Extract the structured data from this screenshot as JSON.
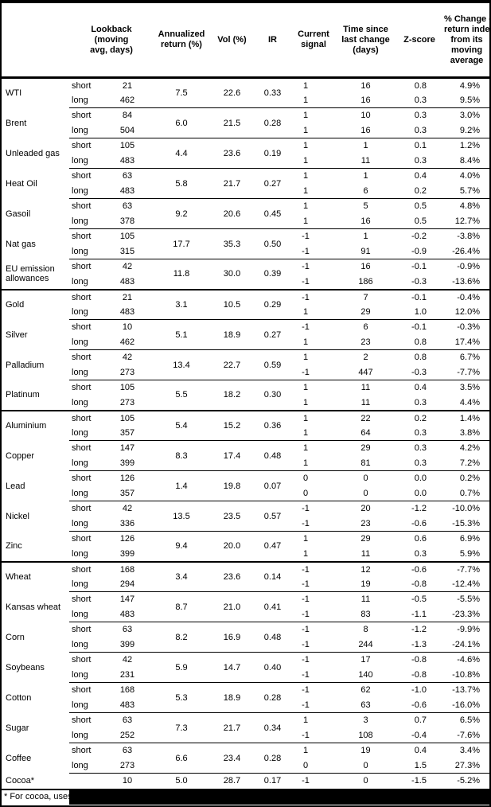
{
  "header": {
    "lookback": "Lookback\n(moving\navg, days)",
    "annualized": "Annualized\nreturn (%)",
    "vol": "Vol (%)",
    "ir": "IR",
    "signal": "Current\nsignal",
    "time_since": "Time since\nlast change\n(days)",
    "zscore": "Z-score",
    "pct_change": "% Change of\nreturn index\nfrom its\nmoving\naverage"
  },
  "leg_labels": {
    "short": "short",
    "long": "long"
  },
  "rows": [
    {
      "name": "WTI",
      "ann": "7.5",
      "vol": "22.6",
      "ir": "0.33",
      "short": {
        "look": "21",
        "sig": "1",
        "time": "16",
        "z": "0.8",
        "pct": "4.9%"
      },
      "long": {
        "look": "462",
        "sig": "1",
        "time": "16",
        "z": "0.3",
        "pct": "9.5%"
      }
    },
    {
      "name": "Brent",
      "ann": "6.0",
      "vol": "21.5",
      "ir": "0.28",
      "short": {
        "look": "84",
        "sig": "1",
        "time": "10",
        "z": "0.3",
        "pct": "3.0%"
      },
      "long": {
        "look": "504",
        "sig": "1",
        "time": "16",
        "z": "0.3",
        "pct": "9.2%"
      }
    },
    {
      "name": "Unleaded gas",
      "ann": "4.4",
      "vol": "23.6",
      "ir": "0.19",
      "short": {
        "look": "105",
        "sig": "1",
        "time": "1",
        "z": "0.1",
        "pct": "1.2%"
      },
      "long": {
        "look": "483",
        "sig": "1",
        "time": "11",
        "z": "0.3",
        "pct": "8.4%"
      }
    },
    {
      "name": "Heat Oil",
      "ann": "5.8",
      "vol": "21.7",
      "ir": "0.27",
      "short": {
        "look": "63",
        "sig": "1",
        "time": "1",
        "z": "0.4",
        "pct": "4.0%"
      },
      "long": {
        "look": "483",
        "sig": "1",
        "time": "6",
        "z": "0.2",
        "pct": "5.7%"
      }
    },
    {
      "name": "Gasoil",
      "ann": "9.2",
      "vol": "20.6",
      "ir": "0.45",
      "short": {
        "look": "63",
        "sig": "1",
        "time": "5",
        "z": "0.5",
        "pct": "4.8%"
      },
      "long": {
        "look": "378",
        "sig": "1",
        "time": "16",
        "z": "0.5",
        "pct": "12.7%"
      }
    },
    {
      "name": "Nat gas",
      "ann": "17.7",
      "vol": "35.3",
      "ir": "0.50",
      "short": {
        "look": "105",
        "sig": "-1",
        "time": "1",
        "z": "-0.2",
        "pct": "-3.8%"
      },
      "long": {
        "look": "315",
        "sig": "-1",
        "time": "91",
        "z": "-0.9",
        "pct": "-26.4%"
      }
    },
    {
      "name": "EU emission allowances",
      "ann": "11.8",
      "vol": "30.0",
      "ir": "0.39",
      "short": {
        "look": "42",
        "sig": "-1",
        "time": "16",
        "z": "-0.1",
        "pct": "-0.9%"
      },
      "long": {
        "look": "483",
        "sig": "-1",
        "time": "186",
        "z": "-0.3",
        "pct": "-13.6%"
      }
    },
    {
      "name": "Gold",
      "section": true,
      "ann": "3.1",
      "vol": "10.5",
      "ir": "0.29",
      "short": {
        "look": "21",
        "sig": "-1",
        "time": "7",
        "z": "-0.1",
        "pct": "-0.4%"
      },
      "long": {
        "look": "483",
        "sig": "1",
        "time": "29",
        "z": "1.0",
        "pct": "12.0%"
      }
    },
    {
      "name": "Silver",
      "ann": "5.1",
      "vol": "18.9",
      "ir": "0.27",
      "short": {
        "look": "10",
        "sig": "-1",
        "time": "6",
        "z": "-0.1",
        "pct": "-0.3%"
      },
      "long": {
        "look": "462",
        "sig": "1",
        "time": "23",
        "z": "0.8",
        "pct": "17.4%"
      }
    },
    {
      "name": "Palladium",
      "ann": "13.4",
      "vol": "22.7",
      "ir": "0.59",
      "short": {
        "look": "42",
        "sig": "1",
        "time": "2",
        "z": "0.8",
        "pct": "6.7%"
      },
      "long": {
        "look": "273",
        "sig": "-1",
        "time": "447",
        "z": "-0.3",
        "pct": "-7.7%"
      }
    },
    {
      "name": "Platinum",
      "ann": "5.5",
      "vol": "18.2",
      "ir": "0.30",
      "short": {
        "look": "105",
        "sig": "1",
        "time": "11",
        "z": "0.4",
        "pct": "3.5%"
      },
      "long": {
        "look": "273",
        "sig": "1",
        "time": "11",
        "z": "0.3",
        "pct": "4.4%"
      }
    },
    {
      "name": "Aluminium",
      "section": true,
      "ann": "5.4",
      "vol": "15.2",
      "ir": "0.36",
      "short": {
        "look": "105",
        "sig": "1",
        "time": "22",
        "z": "0.2",
        "pct": "1.4%"
      },
      "long": {
        "look": "357",
        "sig": "1",
        "time": "64",
        "z": "0.3",
        "pct": "3.8%"
      }
    },
    {
      "name": "Copper",
      "ann": "8.3",
      "vol": "17.4",
      "ir": "0.48",
      "short": {
        "look": "147",
        "sig": "1",
        "time": "29",
        "z": "0.3",
        "pct": "4.2%"
      },
      "long": {
        "look": "399",
        "sig": "1",
        "time": "81",
        "z": "0.3",
        "pct": "7.2%"
      }
    },
    {
      "name": "Lead",
      "ann": "1.4",
      "vol": "19.8",
      "ir": "0.07",
      "short": {
        "look": "126",
        "sig": "0",
        "time": "0",
        "z": "0.0",
        "pct": "0.2%"
      },
      "long": {
        "look": "357",
        "sig": "0",
        "time": "0",
        "z": "0.0",
        "pct": "0.7%"
      }
    },
    {
      "name": "Nickel",
      "ann": "13.5",
      "vol": "23.5",
      "ir": "0.57",
      "short": {
        "look": "42",
        "sig": "-1",
        "time": "20",
        "z": "-1.2",
        "pct": "-10.0%"
      },
      "long": {
        "look": "336",
        "sig": "-1",
        "time": "23",
        "z": "-0.6",
        "pct": "-15.3%"
      }
    },
    {
      "name": "Zinc",
      "ann": "9.4",
      "vol": "20.0",
      "ir": "0.47",
      "short": {
        "look": "126",
        "sig": "1",
        "time": "29",
        "z": "0.6",
        "pct": "6.9%"
      },
      "long": {
        "look": "399",
        "sig": "1",
        "time": "11",
        "z": "0.3",
        "pct": "5.9%"
      }
    },
    {
      "name": "Wheat",
      "section": true,
      "ann": "3.4",
      "vol": "23.6",
      "ir": "0.14",
      "short": {
        "look": "168",
        "sig": "-1",
        "time": "12",
        "z": "-0.6",
        "pct": "-7.7%"
      },
      "long": {
        "look": "294",
        "sig": "-1",
        "time": "19",
        "z": "-0.8",
        "pct": "-12.4%"
      }
    },
    {
      "name": "Kansas wheat",
      "ann": "8.7",
      "vol": "21.0",
      "ir": "0.41",
      "short": {
        "look": "147",
        "sig": "-1",
        "time": "11",
        "z": "-0.5",
        "pct": "-5.5%"
      },
      "long": {
        "look": "483",
        "sig": "-1",
        "time": "83",
        "z": "-1.1",
        "pct": "-23.3%"
      }
    },
    {
      "name": "Corn",
      "ann": "8.2",
      "vol": "16.9",
      "ir": "0.48",
      "short": {
        "look": "63",
        "sig": "-1",
        "time": "8",
        "z": "-1.2",
        "pct": "-9.9%"
      },
      "long": {
        "look": "399",
        "sig": "-1",
        "time": "244",
        "z": "-1.3",
        "pct": "-24.1%"
      }
    },
    {
      "name": "Soybeans",
      "ann": "5.9",
      "vol": "14.7",
      "ir": "0.40",
      "short": {
        "look": "42",
        "sig": "-1",
        "time": "17",
        "z": "-0.8",
        "pct": "-4.6%"
      },
      "long": {
        "look": "231",
        "sig": "-1",
        "time": "140",
        "z": "-0.8",
        "pct": "-10.8%"
      }
    },
    {
      "name": "Cotton",
      "ann": "5.3",
      "vol": "18.9",
      "ir": "0.28",
      "short": {
        "look": "168",
        "sig": "-1",
        "time": "62",
        "z": "-1.0",
        "pct": "-13.7%"
      },
      "long": {
        "look": "483",
        "sig": "-1",
        "time": "63",
        "z": "-0.6",
        "pct": "-16.0%"
      }
    },
    {
      "name": "Sugar",
      "ann": "7.3",
      "vol": "21.7",
      "ir": "0.34",
      "short": {
        "look": "63",
        "sig": "1",
        "time": "3",
        "z": "0.7",
        "pct": "6.5%"
      },
      "long": {
        "look": "252",
        "sig": "-1",
        "time": "108",
        "z": "-0.4",
        "pct": "-7.6%"
      }
    },
    {
      "name": "Coffee",
      "ann": "6.6",
      "vol": "23.4",
      "ir": "0.28",
      "short": {
        "look": "63",
        "sig": "1",
        "time": "19",
        "z": "0.4",
        "pct": "3.4%"
      },
      "long": {
        "look": "273",
        "sig": "0",
        "time": "0",
        "z": "1.5",
        "pct": "27.3%"
      }
    },
    {
      "name": "Cocoa*",
      "ann": "5.0",
      "vol": "28.7",
      "ir": "0.17",
      "single": {
        "look": "10",
        "sig": "-1",
        "time": "0",
        "z": "-1.5",
        "pct": "-5.2%"
      }
    }
  ],
  "footnote": {
    "text": "* For cocoa, uses c"
  }
}
